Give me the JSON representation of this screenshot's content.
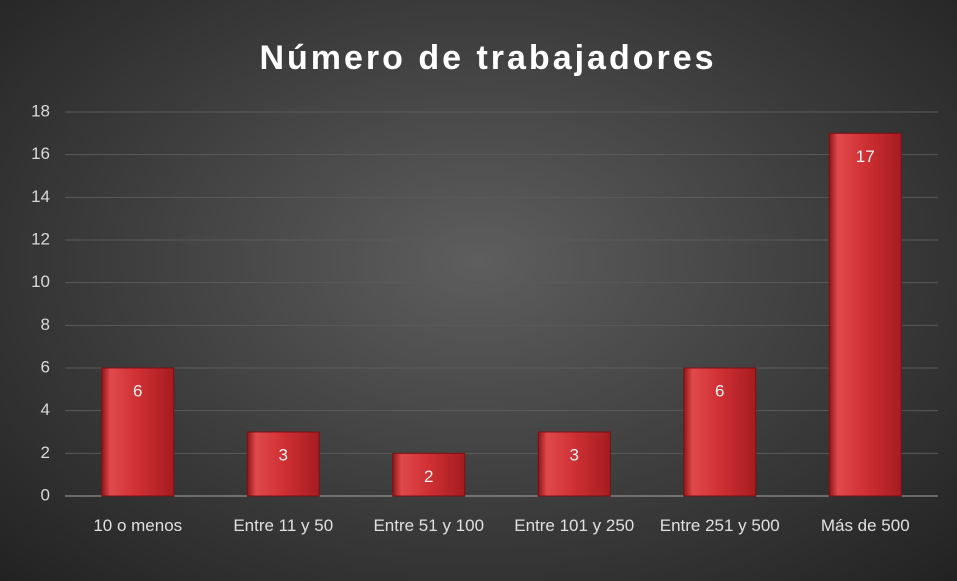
{
  "chart_data": {
    "type": "bar",
    "title": "Número de trabajadores",
    "categories": [
      "10 o menos",
      "Entre 11 y 50",
      "Entre 51 y 100",
      "Entre 101 y 250",
      "Entre 251 y 500",
      "Más de 500"
    ],
    "values": [
      6,
      3,
      2,
      3,
      6,
      17
    ],
    "color": "#c8282c",
    "ylim": [
      0,
      18
    ],
    "yticks": [
      0,
      2,
      4,
      6,
      8,
      10,
      12,
      14,
      16,
      18
    ],
    "grid": true
  }
}
